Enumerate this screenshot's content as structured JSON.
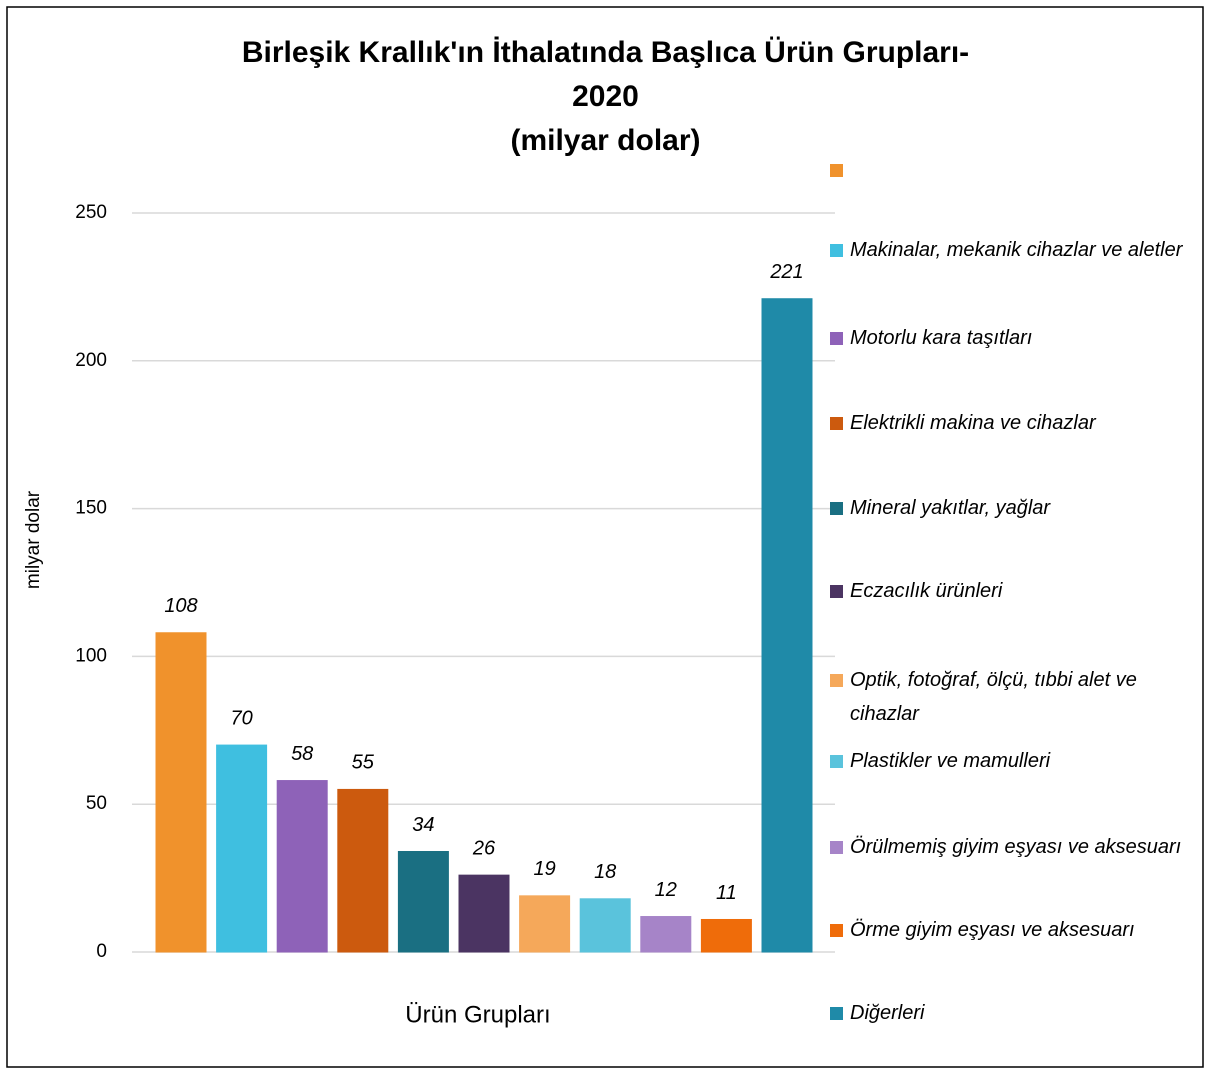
{
  "chart_data": {
    "type": "bar",
    "title": [
      "Birleşik Krallık'ın İthalatında Başlıca Ürün Grupları-",
      "2020",
      "(milyar dolar)"
    ],
    "xlabel": "Ürün Grupları",
    "ylabel": "milyar dolar",
    "ylim": [
      0,
      250
    ],
    "yticks": [
      0,
      50,
      100,
      150,
      200,
      250
    ],
    "grid": true,
    "legend": "right",
    "series": [
      {
        "name": null,
        "color": "#f0922c",
        "values": [
          108
        ]
      },
      {
        "name": "Makinalar, mekanik cihazlar ve aletler",
        "color": "#3fbfe0",
        "values": [
          70
        ]
      },
      {
        "name": "Motorlu kara taşıtları",
        "color": "#8e62b8",
        "values": [
          58
        ]
      },
      {
        "name": "Elektrikli makina ve cihazlar",
        "color": "#cc5a0e",
        "values": [
          55
        ]
      },
      {
        "name": "Mineral yakıtlar, yağlar",
        "color": "#1a6f82",
        "values": [
          34
        ]
      },
      {
        "name": "Eczacılık ürünleri",
        "color": "#4b3462",
        "values": [
          26
        ]
      },
      {
        "name": "Optik, fotoğraf, ölçü, tıbbi alet ve cihazlar",
        "color": "#f5a85a",
        "values": [
          19
        ]
      },
      {
        "name": "Plastikler ve mamulleri",
        "color": "#5ac3dc",
        "values": [
          18
        ]
      },
      {
        "name": "Örülmemiş giyim eşyası ve aksesuarı",
        "color": "#a684c8",
        "values": [
          12
        ]
      },
      {
        "name": "Örme giyim eşyası ve aksesuarı",
        "color": "#ef6c0a",
        "values": [
          11
        ]
      },
      {
        "name": "Diğerleri",
        "color": "#1f8aa8",
        "values": [
          221
        ]
      }
    ]
  }
}
